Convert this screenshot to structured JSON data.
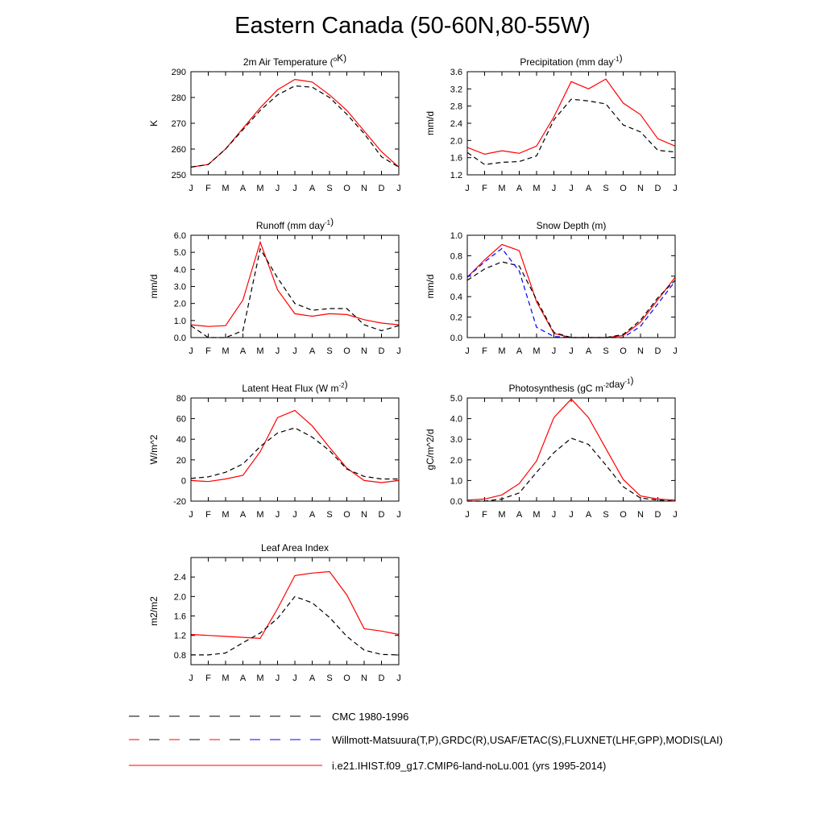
{
  "title": "Eastern Canada (50-60N,80-55W)",
  "legend": [
    {
      "label": "CMC 1980-1996",
      "style": "dashed",
      "color": "#000000"
    },
    {
      "label": "Willmott-Matsuura(T,P),GRDC(R),USAF/ETAC(S),FLUXNET(LHF,GPP),MODIS(LAI)",
      "style": "dashed",
      "color": "#000000"
    },
    {
      "label": "i.e21.IHIST.f09_g17.CMIP6-land-noLu.001 (yrs 1995-2014)",
      "style": "solid",
      "color": "#ff0000"
    }
  ],
  "chart_data": [
    {
      "type": "line",
      "title": "2m Air Temperature (",
      "title_sup": "o",
      "title_end": "K)",
      "ylabel": "K",
      "x": [
        "J",
        "F",
        "M",
        "A",
        "M",
        "J",
        "J",
        "A",
        "S",
        "O",
        "N",
        "D",
        "J"
      ],
      "ylim": [
        250,
        290
      ],
      "yticks": [
        250,
        260,
        270,
        280,
        290
      ],
      "yticklabels": [
        "250",
        "260",
        "270",
        "280",
        "290"
      ],
      "series": [
        {
          "style": "solid",
          "color": "#ff0000",
          "values": [
            253,
            254,
            260,
            268,
            276,
            283,
            287,
            286,
            281,
            275,
            267,
            259,
            253
          ]
        },
        {
          "style": "dashed",
          "color": "#000000",
          "values": [
            253,
            254,
            260,
            267.5,
            275,
            281,
            284.5,
            284,
            280,
            273.5,
            266,
            257,
            253
          ]
        }
      ]
    },
    {
      "type": "line",
      "title": "Precipitation (mm day",
      "title_sup": "-1",
      "title_end": ")",
      "ylabel": "mm/d",
      "x": [
        "J",
        "F",
        "M",
        "A",
        "M",
        "J",
        "J",
        "A",
        "S",
        "O",
        "N",
        "D",
        "J"
      ],
      "ylim": [
        1.2,
        3.6
      ],
      "yticks": [
        1.2,
        1.6,
        2.0,
        2.4,
        2.8,
        3.2,
        3.6
      ],
      "yticklabels": [
        "1.2",
        "1.6",
        "2.0",
        "2.4",
        "2.8",
        "3.2",
        "3.6"
      ],
      "series": [
        {
          "style": "solid",
          "color": "#ff0000",
          "values": [
            1.84,
            1.68,
            1.76,
            1.7,
            1.87,
            2.55,
            3.37,
            3.2,
            3.43,
            2.87,
            2.6,
            2.04,
            1.87
          ]
        },
        {
          "style": "dashed",
          "color": "#000000",
          "values": [
            1.72,
            1.44,
            1.49,
            1.51,
            1.64,
            2.48,
            2.96,
            2.92,
            2.85,
            2.36,
            2.2,
            1.77,
            1.73
          ]
        }
      ]
    },
    {
      "type": "line",
      "title": "Runoff (mm day",
      "title_sup": "-1",
      "title_end": ")",
      "ylabel": "mm/d",
      "x": [
        "J",
        "F",
        "M",
        "A",
        "M",
        "J",
        "J",
        "A",
        "S",
        "O",
        "N",
        "D",
        "J"
      ],
      "ylim": [
        0.0,
        6.0
      ],
      "yticks": [
        0,
        1,
        2,
        3,
        4,
        5,
        6
      ],
      "yticklabels": [
        "0.0",
        "1.0",
        "2.0",
        "3.0",
        "4.0",
        "5.0",
        "6.0"
      ],
      "series": [
        {
          "style": "solid",
          "color": "#ff0000",
          "values": [
            0.75,
            0.65,
            0.7,
            2.2,
            5.6,
            2.8,
            1.4,
            1.25,
            1.4,
            1.35,
            1.05,
            0.85,
            0.75
          ]
        },
        {
          "style": "dashed",
          "color": "#000000",
          "values": [
            0.7,
            0.0,
            0.0,
            0.4,
            5.2,
            3.5,
            2.0,
            1.6,
            1.7,
            1.7,
            0.75,
            0.4,
            0.7
          ]
        }
      ]
    },
    {
      "type": "line",
      "title": "Snow Depth (m)",
      "title_sup": "",
      "title_end": "",
      "ylabel": "mm/d",
      "x": [
        "J",
        "F",
        "M",
        "A",
        "M",
        "J",
        "J",
        "A",
        "S",
        "O",
        "N",
        "D",
        "J"
      ],
      "ylim": [
        0.0,
        1.0
      ],
      "yticks": [
        0,
        0.2,
        0.4,
        0.6,
        0.8,
        1.0
      ],
      "yticklabels": [
        "0.0",
        "0.2",
        "0.4",
        "0.6",
        "0.8",
        "1.0"
      ],
      "series": [
        {
          "style": "solid",
          "color": "#ff0000",
          "values": [
            0.59,
            0.76,
            0.91,
            0.85,
            0.35,
            0.04,
            0.0,
            0.0,
            0.0,
            0.02,
            0.15,
            0.37,
            0.59
          ]
        },
        {
          "style": "dashed",
          "color": "#000000",
          "values": [
            0.56,
            0.67,
            0.74,
            0.7,
            0.37,
            0.05,
            0.0,
            0.0,
            0.0,
            0.03,
            0.17,
            0.39,
            0.56
          ]
        },
        {
          "style": "dashed",
          "color": "#0000ff",
          "values": [
            0.59,
            0.74,
            0.87,
            0.65,
            0.1,
            0.01,
            0.0,
            0.0,
            0.0,
            0.0,
            0.11,
            0.33,
            0.55
          ]
        }
      ]
    },
    {
      "type": "line",
      "title": "Latent Heat Flux (W m",
      "title_sup": "-2",
      "title_end": ")",
      "ylabel": "W/m^2",
      "x": [
        "J",
        "F",
        "M",
        "A",
        "M",
        "J",
        "J",
        "A",
        "S",
        "O",
        "N",
        "D",
        "J"
      ],
      "ylim": [
        -20,
        80
      ],
      "yticks": [
        -20,
        0,
        20,
        40,
        60,
        80
      ],
      "yticklabels": [
        "-20",
        "0",
        "20",
        "40",
        "60",
        "80"
      ],
      "series": [
        {
          "style": "solid",
          "color": "#ff0000",
          "values": [
            0,
            -1,
            1.5,
            5,
            28,
            61,
            68,
            53,
            32,
            12,
            0,
            -2,
            0
          ]
        },
        {
          "style": "dashed",
          "color": "#000000",
          "values": [
            2,
            3.5,
            8,
            16,
            33,
            46,
            51,
            42,
            29,
            11,
            4,
            1.5,
            1.5
          ]
        }
      ]
    },
    {
      "type": "line",
      "title": "Photosynthesis (gC m",
      "title_sup": "-2",
      "title_end": "day",
      "title_sup2": "-1",
      "title_end2": ")",
      "ylabel": "gC/m^2/d",
      "x": [
        "J",
        "F",
        "M",
        "A",
        "M",
        "J",
        "J",
        "A",
        "S",
        "O",
        "N",
        "D",
        "J"
      ],
      "ylim": [
        0.0,
        5.0
      ],
      "yticks": [
        0,
        1,
        2,
        3,
        4,
        5
      ],
      "yticklabels": [
        "0.0",
        "1.0",
        "2.0",
        "3.0",
        "4.0",
        "5.0"
      ],
      "series": [
        {
          "style": "solid",
          "color": "#ff0000",
          "values": [
            0.05,
            0.1,
            0.3,
            0.85,
            1.95,
            4.05,
            4.95,
            4.05,
            2.55,
            1.05,
            0.25,
            0.1,
            0.05
          ]
        },
        {
          "style": "dashed",
          "color": "#000000",
          "values": [
            0.0,
            0.0,
            0.1,
            0.4,
            1.4,
            2.35,
            3.05,
            2.75,
            1.75,
            0.7,
            0.15,
            0.05,
            0.0
          ]
        }
      ]
    },
    {
      "type": "line",
      "title": "Leaf Area Index",
      "title_sup": "",
      "title_end": "",
      "ylabel": "m2/m2",
      "x": [
        "J",
        "F",
        "M",
        "A",
        "M",
        "J",
        "J",
        "A",
        "S",
        "O",
        "N",
        "D",
        "J"
      ],
      "ylim": [
        0.6,
        2.8
      ],
      "yticks": [
        0.8,
        1.2,
        1.6,
        2.0,
        2.4
      ],
      "yticklabels": [
        "0.8",
        "1.2",
        "1.6",
        "2.0",
        "2.4"
      ],
      "series": [
        {
          "style": "solid",
          "color": "#ff0000",
          "values": [
            1.22,
            1.2,
            1.18,
            1.16,
            1.14,
            1.75,
            2.43,
            2.48,
            2.51,
            2.03,
            1.34,
            1.29,
            1.22
          ]
        },
        {
          "style": "dashed",
          "color": "#000000",
          "values": [
            0.8,
            0.8,
            0.84,
            1.05,
            1.25,
            1.55,
            2.0,
            1.87,
            1.57,
            1.18,
            0.9,
            0.81,
            0.8
          ]
        }
      ]
    }
  ]
}
